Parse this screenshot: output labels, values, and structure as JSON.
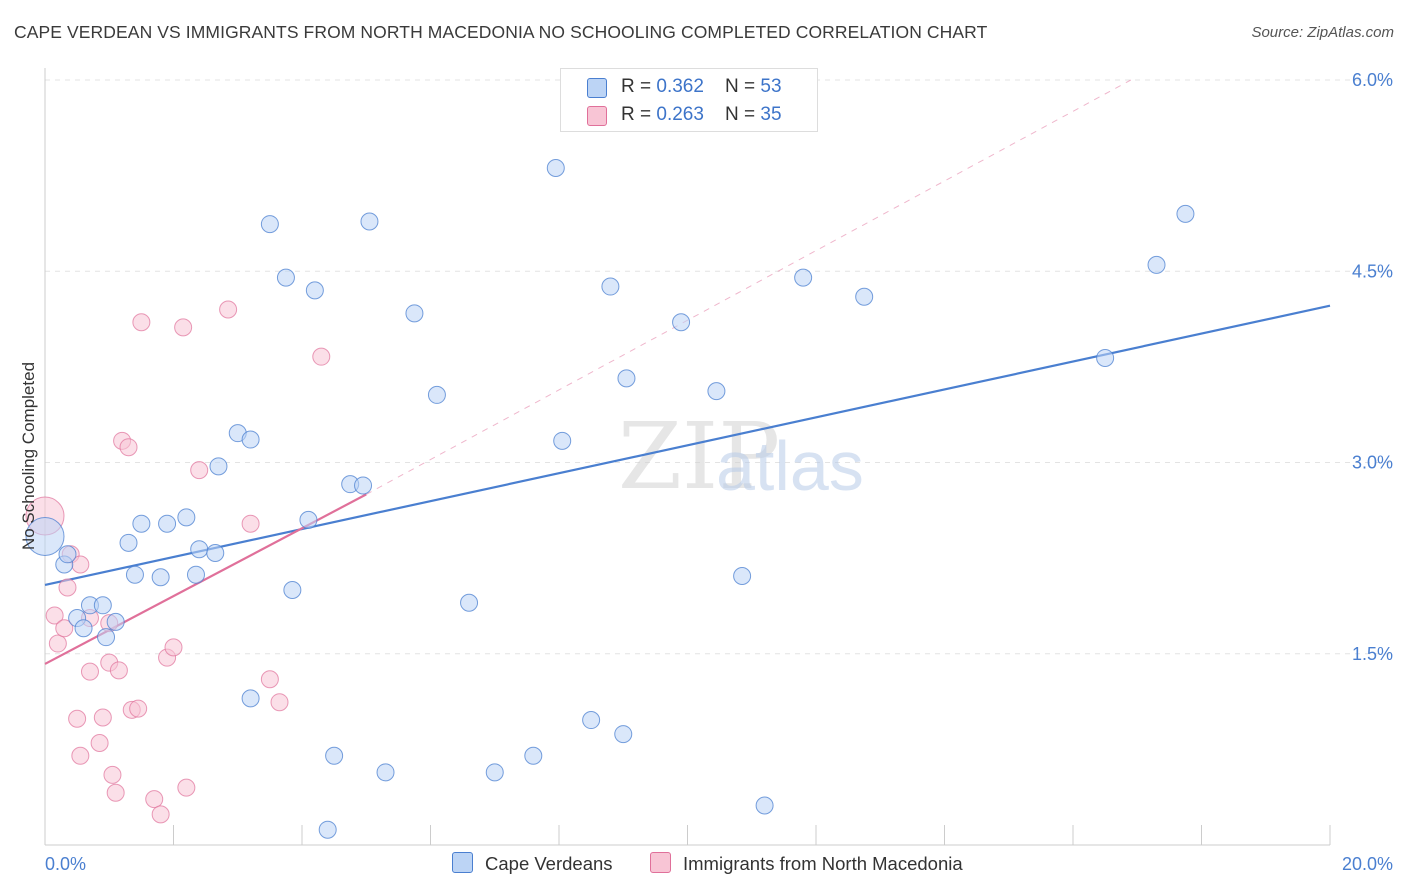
{
  "title": "CAPE VERDEAN VS IMMIGRANTS FROM NORTH MACEDONIA NO SCHOOLING COMPLETED CORRELATION CHART",
  "source": "Source: ZipAtlas.com",
  "colors": {
    "blue": "#4a7fd0",
    "blue_fill": "#bcd4f5",
    "pink": "#e0709a",
    "pink_fill": "#f8c5d5",
    "grid": "#e3e3e3"
  },
  "legend_top": {
    "rows": [
      {
        "r_label": "R = ",
        "r_value": "0.362",
        "n_label": "N = ",
        "n_value": "53"
      },
      {
        "r_label": "R = ",
        "r_value": "0.263",
        "n_label": "N = ",
        "n_value": "35"
      }
    ]
  },
  "legend_bottom": {
    "series1": "Cape Verdeans",
    "series2": "Immigrants from North Macedonia"
  },
  "watermark": {
    "zip": "ZIP",
    "atlas": "atlas"
  },
  "chart_data": {
    "type": "scatter",
    "ylabel": "No Schooling Completed",
    "xlim": [
      0,
      20
    ],
    "ylim": [
      0,
      6
    ],
    "x_ticks": [
      "0.0%",
      "20.0%"
    ],
    "y_ticks": [
      {
        "value": 1.5,
        "label": "1.5%"
      },
      {
        "value": 3.0,
        "label": "3.0%"
      },
      {
        "value": 4.5,
        "label": "4.5%"
      },
      {
        "value": 6.0,
        "label": "6.0%"
      }
    ],
    "series": [
      {
        "name": "Cape Verdeans",
        "r": 0.362,
        "n": 53,
        "trend": {
          "x0": 0,
          "y0": 2.04,
          "x1": 20,
          "y1": 4.23
        },
        "points": [
          [
            0.3,
            2.2
          ],
          [
            0.35,
            2.28
          ],
          [
            0.5,
            1.78
          ],
          [
            0.7,
            1.88
          ],
          [
            0.6,
            1.7
          ],
          [
            0.9,
            1.88
          ],
          [
            0.95,
            1.63
          ],
          [
            1.1,
            1.75
          ],
          [
            1.3,
            2.37
          ],
          [
            1.4,
            2.12
          ],
          [
            1.5,
            2.52
          ],
          [
            1.8,
            2.1
          ],
          [
            1.9,
            2.52
          ],
          [
            2.2,
            2.57
          ],
          [
            2.35,
            2.12
          ],
          [
            2.4,
            2.32
          ],
          [
            2.65,
            2.29
          ],
          [
            2.7,
            2.97
          ],
          [
            3.0,
            3.23
          ],
          [
            3.2,
            3.18
          ],
          [
            3.2,
            1.15
          ],
          [
            3.5,
            4.87
          ],
          [
            3.75,
            4.45
          ],
          [
            3.85,
            2.0
          ],
          [
            4.1,
            2.55
          ],
          [
            4.2,
            4.35
          ],
          [
            4.4,
            0.12
          ],
          [
            4.5,
            0.7
          ],
          [
            4.75,
            2.83
          ],
          [
            4.95,
            2.82
          ],
          [
            5.05,
            4.89
          ],
          [
            5.3,
            0.57
          ],
          [
            5.75,
            4.17
          ],
          [
            6.1,
            3.53
          ],
          [
            6.6,
            1.9
          ],
          [
            7.0,
            0.57
          ],
          [
            7.6,
            0.7
          ],
          [
            7.95,
            5.31
          ],
          [
            8.05,
            3.17
          ],
          [
            8.5,
            0.98
          ],
          [
            8.8,
            4.38
          ],
          [
            9.0,
            0.87
          ],
          [
            9.05,
            3.66
          ],
          [
            9.9,
            4.1
          ],
          [
            10.45,
            3.56
          ],
          [
            10.85,
            2.11
          ],
          [
            11.2,
            0.31
          ],
          [
            11.8,
            4.45
          ],
          [
            12.75,
            4.3
          ],
          [
            16.5,
            3.82
          ],
          [
            17.3,
            4.55
          ],
          [
            17.75,
            4.95
          ],
          [
            0.0,
            2.42
          ]
        ]
      },
      {
        "name": "Immigrants from North Macedonia",
        "r": 0.263,
        "n": 35,
        "trend": {
          "x0": 0,
          "y0": 1.42,
          "x1": 5.0,
          "y1": 2.75
        },
        "trend_ext": {
          "x0": 5.0,
          "y0": 2.75,
          "x1": 16.9,
          "y1": 6.0
        },
        "points": [
          [
            0.0,
            2.58
          ],
          [
            0.15,
            1.8
          ],
          [
            0.2,
            1.58
          ],
          [
            0.3,
            1.7
          ],
          [
            0.35,
            2.02
          ],
          [
            0.4,
            2.28
          ],
          [
            0.5,
            0.99
          ],
          [
            0.55,
            2.2
          ],
          [
            0.55,
            0.7
          ],
          [
            0.7,
            1.78
          ],
          [
            0.7,
            1.36
          ],
          [
            0.85,
            0.8
          ],
          [
            0.9,
            1.0
          ],
          [
            1.0,
            1.74
          ],
          [
            1.0,
            1.43
          ],
          [
            1.05,
            0.55
          ],
          [
            1.1,
            0.41
          ],
          [
            1.15,
            1.37
          ],
          [
            1.2,
            3.17
          ],
          [
            1.3,
            3.12
          ],
          [
            1.35,
            1.06
          ],
          [
            1.45,
            1.07
          ],
          [
            1.5,
            4.1
          ],
          [
            1.7,
            0.36
          ],
          [
            1.8,
            0.24
          ],
          [
            1.9,
            1.47
          ],
          [
            2.0,
            1.55
          ],
          [
            2.15,
            4.06
          ],
          [
            2.2,
            0.45
          ],
          [
            2.4,
            2.94
          ],
          [
            2.85,
            4.2
          ],
          [
            3.2,
            2.52
          ],
          [
            3.5,
            1.3
          ],
          [
            3.65,
            1.12
          ],
          [
            4.3,
            3.83
          ]
        ]
      }
    ]
  }
}
